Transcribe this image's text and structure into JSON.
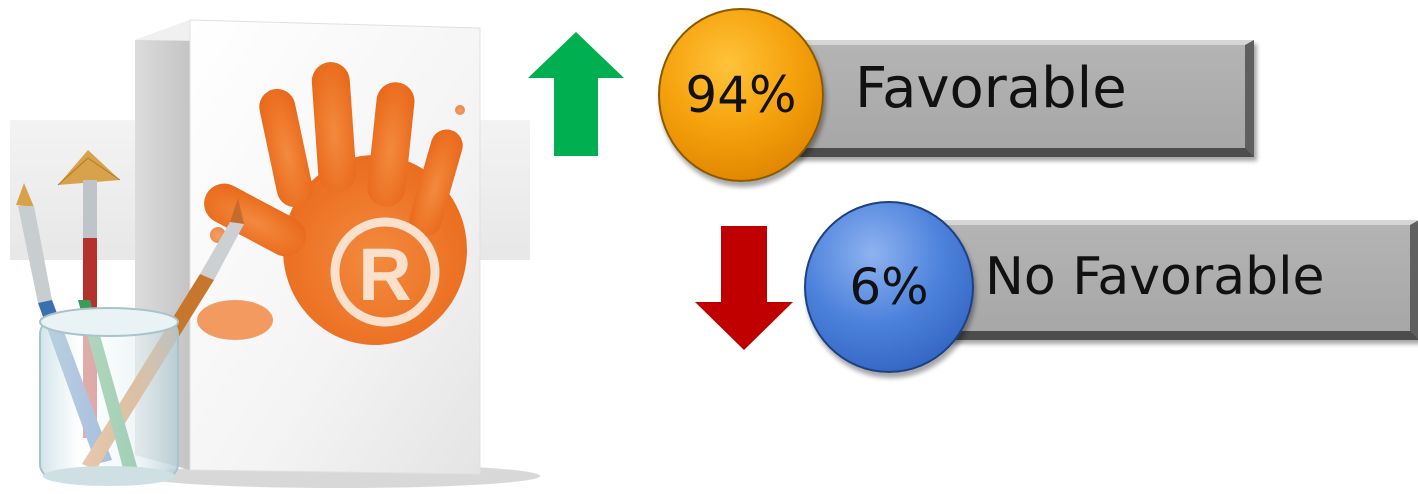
{
  "stats": {
    "favorable": {
      "percent": "94%",
      "label": "Favorable",
      "badge_color": "#f5a10c",
      "arrow": "up-arrow",
      "arrow_color": "#00b050"
    },
    "no_favorable": {
      "percent": "6%",
      "label": "No Favorable",
      "badge_color": "#3a6fcb",
      "arrow": "down-arrow",
      "arrow_color": "#c00000"
    }
  },
  "illustration": {
    "subject": "white box with orange handprint and registered trademark symbol, glass jar with paint brushes",
    "handprint_color": "#f07a2a"
  },
  "bar_color": "#a9a9a9"
}
